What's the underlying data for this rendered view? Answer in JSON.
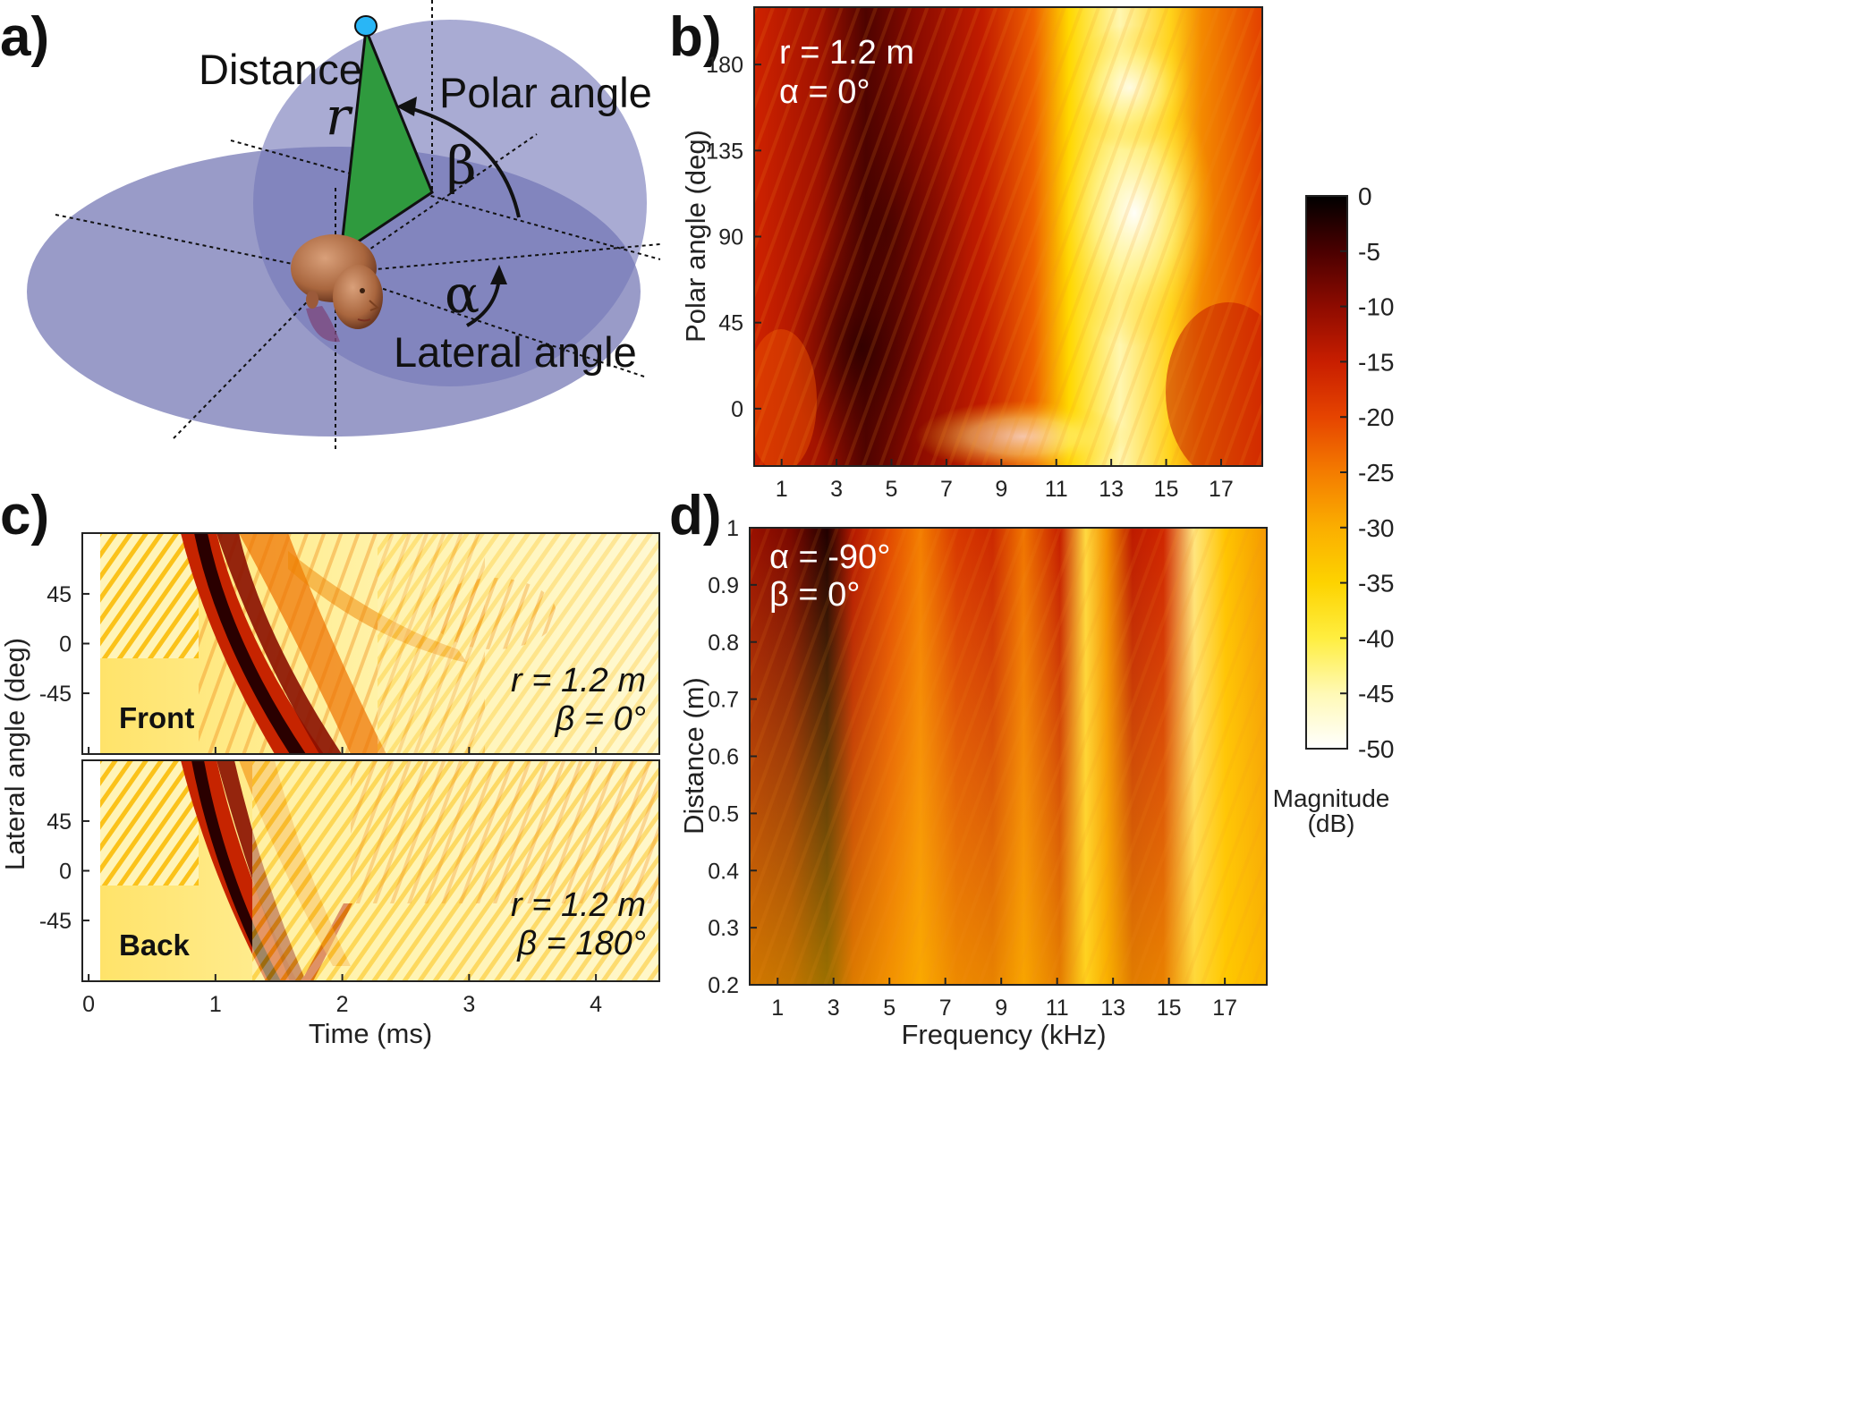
{
  "figure": {
    "panel_a": {
      "label": "a)",
      "distance_label": "Distance",
      "r_symbol": "r",
      "polar_label": "Polar angle",
      "beta_symbol": "β",
      "alpha_symbol": "α",
      "lateral_label": "Lateral angle"
    },
    "colors": {
      "plane_fill": "#6c6fb5",
      "triangle": "#2f9a3e",
      "source": "#29b6f6",
      "head": "#b4764f"
    }
  },
  "chart_data": [
    {
      "id": "b",
      "panel_label": "b)",
      "type": "heatmap",
      "xlabel": "",
      "ylabel": "Polar angle (deg)",
      "xlim": [
        0,
        18.5
      ],
      "ylim": [
        -30,
        210
      ],
      "x_ticks": [
        "1",
        "3",
        "5",
        "7",
        "9",
        "11",
        "13",
        "15",
        "17"
      ],
      "y_ticks": [
        "0",
        "45",
        "90",
        "135",
        "180"
      ],
      "annotations": [
        "r = 1.2 m",
        "α = 0°"
      ],
      "note": "Magnitude spectrum vs frequency (kHz) and polar angle; darkest (~0 dB) near 3-5 kHz, lightest (~-45 dB) near 12-14 kHz at high polar angles"
    },
    {
      "id": "c",
      "panel_label": "c)",
      "type": "heatmap",
      "xlabel": "Time (ms)",
      "ylabel": "Lateral angle (deg)",
      "xlim": [
        -0.05,
        4.5
      ],
      "ylim": [
        -100,
        100
      ],
      "x_ticks": [
        "0",
        "1",
        "2",
        "3",
        "4"
      ],
      "y_ticks": [
        "45",
        "0",
        "-45"
      ],
      "subplots": [
        {
          "name": "Front",
          "annotations": [
            "r = 1.2 m",
            "β = 0°"
          ]
        },
        {
          "name": "Back",
          "annotations": [
            "r = 1.2 m",
            "β = 180°"
          ]
        }
      ],
      "note": "Impulse responses; onset ~0.8 ms at +90° shifting to ~1.7 ms at -90°"
    },
    {
      "id": "d",
      "panel_label": "d)",
      "type": "heatmap",
      "xlabel": "Frequency (kHz)",
      "ylabel": "Distance (m)",
      "xlim": [
        0,
        18.5
      ],
      "ylim": [
        0.2,
        1.0
      ],
      "x_ticks": [
        "1",
        "3",
        "5",
        "7",
        "9",
        "11",
        "13",
        "15",
        "17"
      ],
      "y_ticks": [
        "1",
        "0.9",
        "0.8",
        "0.7",
        "0.6",
        "0.5",
        "0.4",
        "0.3",
        "0.2"
      ],
      "annotations": [
        "α = -90°",
        "β = 0°"
      ],
      "note": "Vertical bands: dark near 2.5-3 kHz, light bands near 12 and 16 kHz"
    }
  ],
  "colorbar": {
    "label_line1": "Magnitude",
    "label_line2": "(dB)",
    "ticks": [
      "0",
      "-5",
      "-10",
      "-15",
      "-20",
      "-25",
      "-30",
      "-35",
      "-40",
      "-45",
      "-50"
    ],
    "range": [
      -50,
      0
    ],
    "colormap": [
      "#000000",
      "#4a0000",
      "#8e0b00",
      "#c81e00",
      "#e64400",
      "#f47c00",
      "#fbae00",
      "#fdd300",
      "#ffee40",
      "#fff9b5",
      "#ffffff"
    ]
  }
}
